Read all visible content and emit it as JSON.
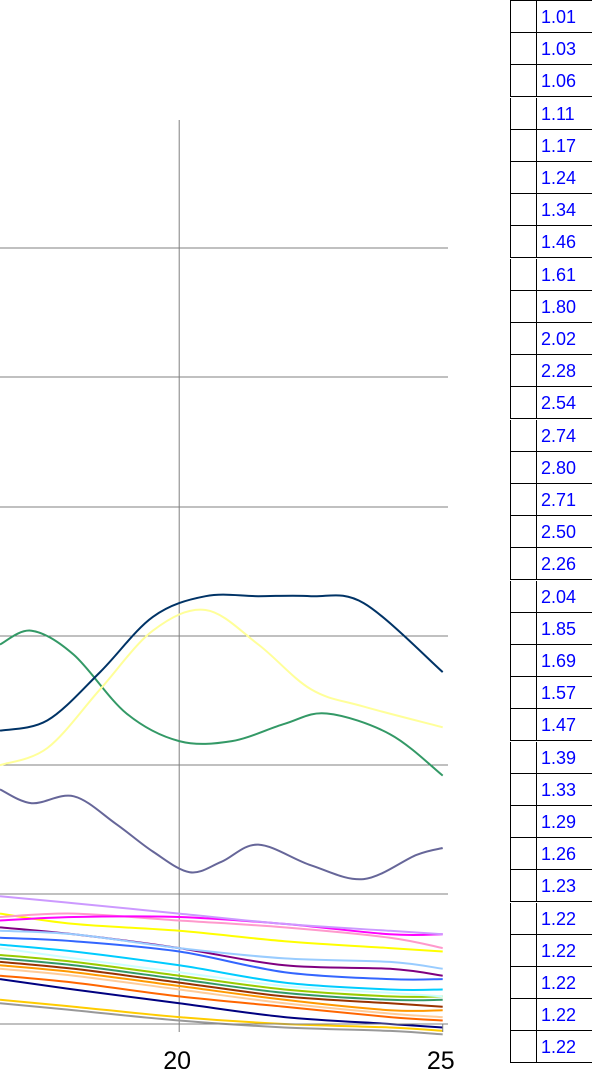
{
  "chart_data": {
    "type": "line",
    "x_ticks": [
      "20",
      "25"
    ],
    "xlim": [
      16.6,
      25.1
    ],
    "ylim": [
      0.98,
      3.6
    ],
    "grid": true,
    "colors": {
      "gridline": "#808080",
      "table_text": "#0000ff"
    },
    "series": [
      {
        "color": "#003366",
        "x": [
          16.6,
          17.5,
          18.5,
          19.5,
          20.5,
          21.5,
          22.5,
          23.5,
          25
        ],
        "y": [
          1.83,
          1.86,
          2.0,
          2.16,
          2.22,
          2.22,
          2.22,
          2.2,
          2.0
        ]
      },
      {
        "color": "#ffff99",
        "x": [
          16.6,
          17.5,
          18.5,
          19.5,
          20.5,
          21.5,
          22.5,
          23.5,
          25
        ],
        "y": [
          1.73,
          1.78,
          1.95,
          2.12,
          2.18,
          2.08,
          1.95,
          1.9,
          1.84
        ]
      },
      {
        "color": "#339966",
        "x": [
          16.6,
          17.2,
          18.0,
          19.0,
          20.0,
          21.0,
          22.0,
          22.8,
          24.0,
          25
        ],
        "y": [
          2.08,
          2.12,
          2.05,
          1.88,
          1.8,
          1.8,
          1.85,
          1.88,
          1.82,
          1.7
        ]
      },
      {
        "color": "#666699",
        "x": [
          16.6,
          17.2,
          18.0,
          18.8,
          19.5,
          20.2,
          20.8,
          21.5,
          22.5,
          23.5,
          24.5,
          25
        ],
        "y": [
          1.66,
          1.62,
          1.64,
          1.56,
          1.48,
          1.42,
          1.45,
          1.5,
          1.44,
          1.4,
          1.47,
          1.49
        ]
      },
      {
        "color": "#cc99ff",
        "x": [
          16.6,
          18,
          20,
          22,
          24,
          25
        ],
        "y": [
          1.35,
          1.33,
          1.3,
          1.27,
          1.25,
          1.24
        ]
      },
      {
        "color": "#ff00ff",
        "x": [
          16.6,
          18,
          20,
          22,
          24,
          25
        ],
        "y": [
          1.28,
          1.29,
          1.29,
          1.27,
          1.24,
          1.24
        ]
      },
      {
        "color": "#ff99cc",
        "x": [
          16.6,
          18,
          20,
          22,
          24,
          25
        ],
        "y": [
          1.29,
          1.3,
          1.28,
          1.26,
          1.23,
          1.2
        ]
      },
      {
        "color": "#ffff00",
        "x": [
          16.6,
          18,
          20,
          22,
          24,
          25
        ],
        "y": [
          1.3,
          1.27,
          1.25,
          1.22,
          1.2,
          1.19
        ]
      },
      {
        "color": "#99ccff",
        "x": [
          16.6,
          18,
          20,
          22,
          24,
          25
        ],
        "y": [
          1.25,
          1.24,
          1.2,
          1.17,
          1.16,
          1.14
        ]
      },
      {
        "color": "#800080",
        "x": [
          16.6,
          18,
          20,
          22,
          24,
          25
        ],
        "y": [
          1.26,
          1.24,
          1.2,
          1.15,
          1.14,
          1.12
        ]
      },
      {
        "color": "#3366ff",
        "x": [
          16.6,
          18,
          20,
          22,
          24,
          25
        ],
        "y": [
          1.23,
          1.22,
          1.19,
          1.13,
          1.11,
          1.11
        ]
      },
      {
        "color": "#00ccff",
        "x": [
          16.6,
          18,
          20,
          22,
          24,
          25
        ],
        "y": [
          1.21,
          1.19,
          1.15,
          1.1,
          1.08,
          1.08
        ]
      },
      {
        "color": "#ccffff",
        "x": [
          16.6,
          18,
          20,
          22,
          24,
          25
        ],
        "y": [
          1.2,
          1.17,
          1.13,
          1.09,
          1.07,
          1.06
        ]
      },
      {
        "color": "#99cc00",
        "x": [
          16.6,
          18,
          20,
          22,
          24,
          25
        ],
        "y": [
          1.18,
          1.16,
          1.12,
          1.08,
          1.06,
          1.06
        ]
      },
      {
        "color": "#339966",
        "x": [
          16.6,
          18,
          20,
          22,
          24,
          25
        ],
        "y": [
          1.17,
          1.15,
          1.11,
          1.07,
          1.05,
          1.05
        ]
      },
      {
        "color": "#993300",
        "x": [
          16.6,
          18,
          20,
          22,
          24,
          25
        ],
        "y": [
          1.16,
          1.14,
          1.1,
          1.06,
          1.04,
          1.03
        ]
      },
      {
        "color": "#ff9900",
        "x": [
          16.6,
          18,
          20,
          22,
          24,
          25
        ],
        "y": [
          1.15,
          1.13,
          1.09,
          1.05,
          1.02,
          1.02
        ]
      },
      {
        "color": "#ffcc99",
        "x": [
          16.6,
          18,
          20,
          22,
          24,
          25
        ],
        "y": [
          1.14,
          1.12,
          1.08,
          1.04,
          1.01,
          1.0
        ]
      },
      {
        "color": "#ff6600",
        "x": [
          16.6,
          18,
          20,
          22,
          24,
          25
        ],
        "y": [
          1.12,
          1.1,
          1.06,
          1.03,
          1.0,
          0.99
        ]
      },
      {
        "color": "#000080",
        "x": [
          16.6,
          18,
          20,
          22,
          24,
          25
        ],
        "y": [
          1.11,
          1.08,
          1.04,
          1.0,
          0.98,
          0.97
        ]
      },
      {
        "color": "#ffcc00",
        "x": [
          16.6,
          18,
          20,
          22,
          24,
          25
        ],
        "y": [
          1.05,
          1.03,
          1.0,
          0.98,
          0.97,
          0.96
        ]
      },
      {
        "color": "#999999",
        "x": [
          16.6,
          18,
          20,
          22,
          24,
          25
        ],
        "y": [
          1.04,
          1.02,
          0.99,
          0.97,
          0.96,
          0.95
        ]
      }
    ]
  },
  "table": {
    "values": [
      "1.01",
      "1.03",
      "1.06",
      "1.11",
      "1.17",
      "1.24",
      "1.34",
      "1.46",
      "1.61",
      "1.80",
      "2.02",
      "2.28",
      "2.54",
      "2.74",
      "2.80",
      "2.71",
      "2.50",
      "2.26",
      "2.04",
      "1.85",
      "1.69",
      "1.57",
      "1.47",
      "1.39",
      "1.33",
      "1.29",
      "1.26",
      "1.23",
      "1.22",
      "1.22",
      "1.22",
      "1.22",
      "1.22"
    ]
  }
}
